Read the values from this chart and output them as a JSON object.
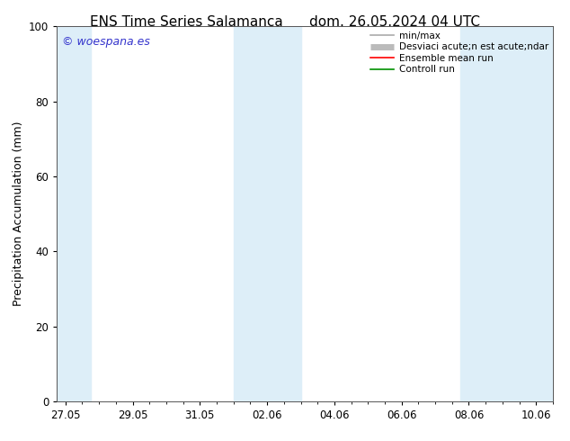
{
  "title_left": "ENS Time Series Salamanca",
  "title_right": "dom. 26.05.2024 04 UTC",
  "ylabel": "Precipitation Accumulation (mm)",
  "ylim": [
    0,
    100
  ],
  "yticks": [
    0,
    20,
    40,
    60,
    80,
    100
  ],
  "background_color": "#ffffff",
  "plot_bg_color": "#ffffff",
  "watermark_text": "© woespana.es",
  "watermark_color": "#3333cc",
  "shade_color": "#ddeef8",
  "xtick_labels": [
    "27.05",
    "29.05",
    "31.05",
    "02.06",
    "04.06",
    "06.06",
    "08.06",
    "10.06"
  ],
  "legend_entries": [
    {
      "label": "min/max",
      "color": "#aaaaaa",
      "lw": 1.2
    },
    {
      "label": "Desviaci acute;n est acute;ndar",
      "color": "#bbbbbb",
      "lw": 5
    },
    {
      "label": "Ensemble mean run",
      "color": "#ff0000",
      "lw": 1.2
    },
    {
      "label": "Controll run",
      "color": "#009000",
      "lw": 1.2
    }
  ],
  "title_fontsize": 11,
  "tick_fontsize": 8.5,
  "label_fontsize": 9,
  "legend_fontsize": 7.5
}
